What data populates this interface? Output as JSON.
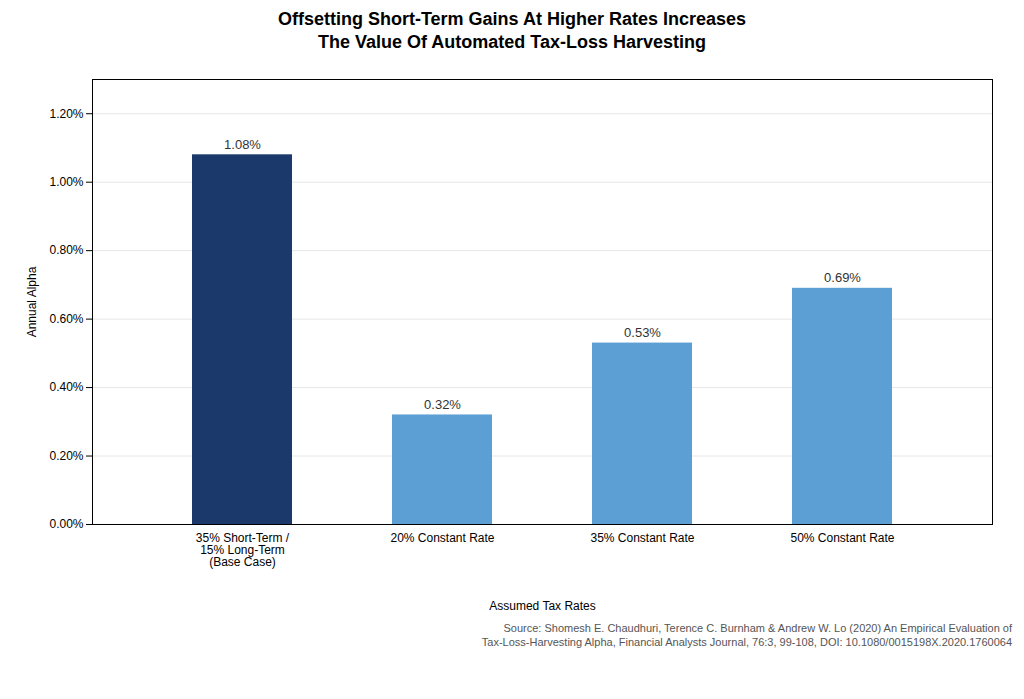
{
  "chart_data": {
    "type": "bar",
    "title": "Offsetting Short-Term Gains At Higher Rates Increases\nThe Value Of Automated Tax-Loss Harvesting",
    "categories": [
      "35% Short-Term /\n15% Long-Term\n(Base Case)",
      "20% Constant Rate",
      "35% Constant Rate",
      "50% Constant Rate"
    ],
    "values": [
      0.0108,
      0.0032,
      0.0053,
      0.0069
    ],
    "value_labels": [
      "1.08%",
      "0.32%",
      "0.53%",
      "0.69%"
    ],
    "data_labels": true,
    "colors": [
      "#1b3a6b",
      "#5b9fd4",
      "#5b9fd4",
      "#5b9fd4"
    ],
    "xlabel": "Assumed Tax Rates",
    "ylabel": "Annual Alpha",
    "ylim": [
      0,
      0.013
    ],
    "yticks": [
      {
        "value": 0.0,
        "label": "0.00%"
      },
      {
        "value": 0.002,
        "label": "0.20%"
      },
      {
        "value": 0.004,
        "label": "0.40%"
      },
      {
        "value": 0.006,
        "label": "0.60%"
      },
      {
        "value": 0.008,
        "label": "0.80%"
      },
      {
        "value": 0.01,
        "label": "1.00%"
      },
      {
        "value": 0.012,
        "label": "1.20%"
      }
    ],
    "grid": true,
    "source": "Source: Shomesh E. Chaudhuri, Terence C. Burnham & Andrew W. Lo (2020) An Empirical Evaluation of\nTax-Loss-Harvesting Alpha, Financial Analysts Journal, 76:3, 99-108, DOI: 10.1080/0015198X.2020.1760064"
  }
}
